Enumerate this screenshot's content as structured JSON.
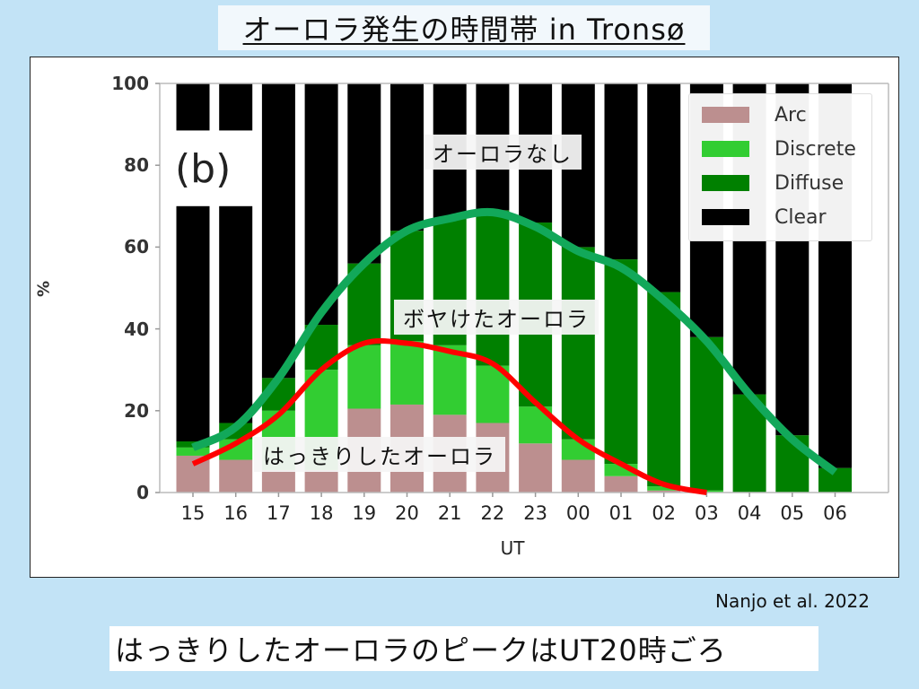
{
  "slide": {
    "title": "オーロラ発生の時間帯 in Tronsø",
    "credit": "Nanjo et al. 2022",
    "caption": "はっきりしたオーロラのピークはUT20時ごろ",
    "background_color": "#c2e3f6"
  },
  "annotations": {
    "no_aurora": "オーロラなし",
    "diffuse_aurora": "ボヤけたオーロラ",
    "clear_aurora": "はっきりしたオーロラ"
  },
  "chart_data": {
    "type": "bar",
    "stacked": true,
    "title": "",
    "panel_label": "(b)",
    "xlabel": "UT",
    "ylabel": "%",
    "ylim": [
      0,
      100
    ],
    "yticks": [
      0,
      20,
      40,
      60,
      80,
      100
    ],
    "grid": false,
    "legend_position": "upper right",
    "categories": [
      "15",
      "16",
      "17",
      "18",
      "19",
      "20",
      "21",
      "22",
      "23",
      "00",
      "01",
      "02",
      "03",
      "04",
      "05",
      "06"
    ],
    "series": [
      {
        "name": "Arc",
        "color": "#bc8f8f",
        "values": [
          9,
          8,
          5.5,
          5.5,
          20.5,
          21.5,
          19,
          17,
          12,
          8,
          4,
          0.5,
          0,
          0,
          0,
          0
        ]
      },
      {
        "name": "Discrete",
        "color": "#32cd32",
        "values": [
          2,
          5,
          14.5,
          24.5,
          15.5,
          15.5,
          17,
          14,
          9,
          5,
          3,
          1,
          0.5,
          0,
          0,
          0
        ]
      },
      {
        "name": "Diffuse",
        "color": "#008000",
        "values": [
          1.5,
          4,
          8,
          11,
          20,
          27,
          31,
          38,
          45,
          47,
          50,
          47.5,
          37.5,
          24,
          14,
          6
        ]
      },
      {
        "name": "Clear",
        "color": "#000000",
        "values": [
          87.5,
          83,
          72,
          59,
          44,
          36,
          33,
          31,
          34,
          40,
          43,
          51,
          62,
          76,
          86,
          94
        ]
      }
    ],
    "overlay_lines": [
      {
        "name": "ボヤけたオーロラ (all aurora trend)",
        "color": "#12a85a",
        "x": [
          "15",
          "16",
          "17",
          "18",
          "19",
          "20",
          "21",
          "22",
          "23",
          "00",
          "01",
          "02",
          "03",
          "04",
          "05",
          "06"
        ],
        "y": [
          11,
          16,
          28,
          44,
          56,
          64,
          67,
          68.5,
          65,
          59,
          55,
          47,
          37,
          24,
          13,
          5
        ]
      },
      {
        "name": "はっきりしたオーロラ (discrete+arc trend)",
        "color": "#ff0000",
        "x": [
          "15",
          "16",
          "17",
          "18",
          "19",
          "20",
          "21",
          "22",
          "23",
          "00",
          "01",
          "02",
          "03"
        ],
        "y": [
          7,
          12,
          19,
          30,
          36.5,
          36.5,
          34.5,
          31.5,
          22,
          13,
          7,
          2,
          0
        ]
      }
    ]
  }
}
